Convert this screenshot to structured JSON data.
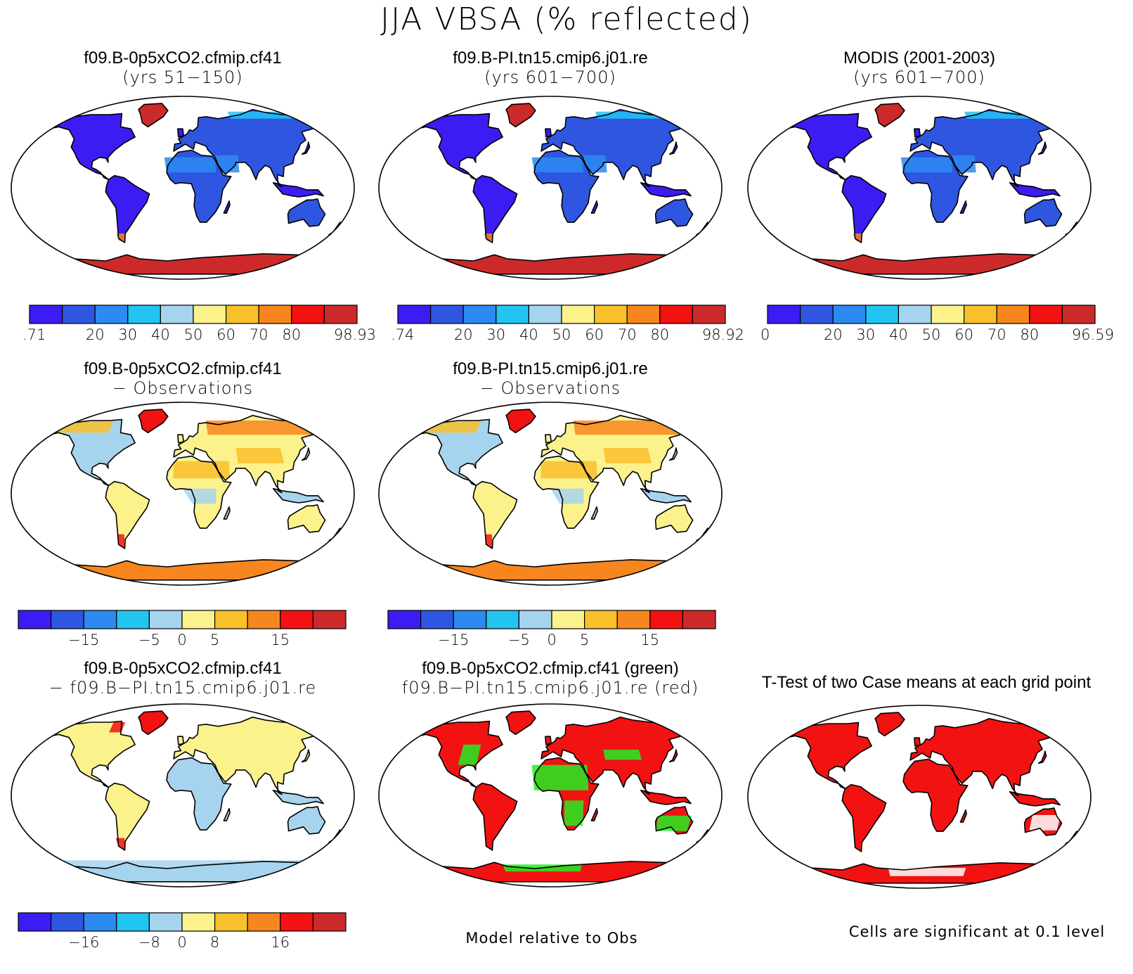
{
  "main_title": "JJA VBSA (% reflected)",
  "palette": [
    "#3b1cf2",
    "#2f56e0",
    "#2c8af0",
    "#22c4f2",
    "#a6d4ee",
    "#fbf28c",
    "#f8c02a",
    "#f7861f",
    "#f21212",
    "#cc2a2a"
  ],
  "diff_palette": [
    "#3b1cf2",
    "#2f56e0",
    "#2c8af0",
    "#22c4f2",
    "#a6d4ee",
    "#fbf28c",
    "#f8c02a",
    "#f7861f",
    "#f21212",
    "#cc2a2a"
  ],
  "panels": [
    {
      "id": "p1",
      "line1": "f09.B-0p5xCO2.cfmip.cf41",
      "line2": "(yrs 51−150)",
      "scheme": "abs",
      "colorbar": {
        "labels": [
          ".71",
          "20",
          "30",
          "40",
          "50",
          "60",
          "70",
          "80",
          "98.93"
        ]
      }
    },
    {
      "id": "p2",
      "line1": "f09.B-PI.tn15.cmip6.j01.re",
      "line2": "(yrs 601−700)",
      "scheme": "abs",
      "colorbar": {
        "labels": [
          ".74",
          "20",
          "30",
          "40",
          "50",
          "60",
          "70",
          "80",
          "98.92"
        ]
      }
    },
    {
      "id": "p3",
      "line1": "MODIS (2001-2003)",
      "line2": "(yrs 601−700)",
      "scheme": "abs",
      "colorbar": {
        "labels": [
          "0",
          "20",
          "30",
          "40",
          "50",
          "60",
          "70",
          "80",
          "96.59"
        ]
      }
    },
    {
      "id": "p4",
      "line1": "f09.B-0p5xCO2.cfmip.cf41",
      "line2": "− Observations",
      "scheme": "diffobs",
      "colorbar": {
        "labels": [
          "−15",
          "−5",
          "0",
          "5",
          "15"
        ]
      }
    },
    {
      "id": "p5",
      "line1": "f09.B-PI.tn15.cmip6.j01.re",
      "line2": "− Observations",
      "scheme": "diffobs",
      "colorbar": {
        "labels": [
          "−15",
          "−5",
          "0",
          "5",
          "15"
        ]
      }
    },
    {
      "id": "p6",
      "line1": "f09.B-0p5xCO2.cfmip.cf41",
      "line2": "− f09.B−PI.tn15.cmip6.j01.re",
      "scheme": "diffcase",
      "colorbar": {
        "labels": [
          "−16",
          "−8",
          "0",
          "8",
          "16"
        ]
      }
    },
    {
      "id": "p7",
      "line1": "f09.B-0p5xCO2.cfmip.cf41 (green)",
      "line2": "f09.B−PI.tn15.cmip6.j01.re (red)",
      "scheme": "relobs",
      "note": "Model relative to Obs"
    },
    {
      "id": "p8",
      "line1": "T-Test of two Case means at each grid point",
      "line2": "",
      "scheme": "ttest",
      "note": "Cells are significant at 0.1 level"
    }
  ]
}
